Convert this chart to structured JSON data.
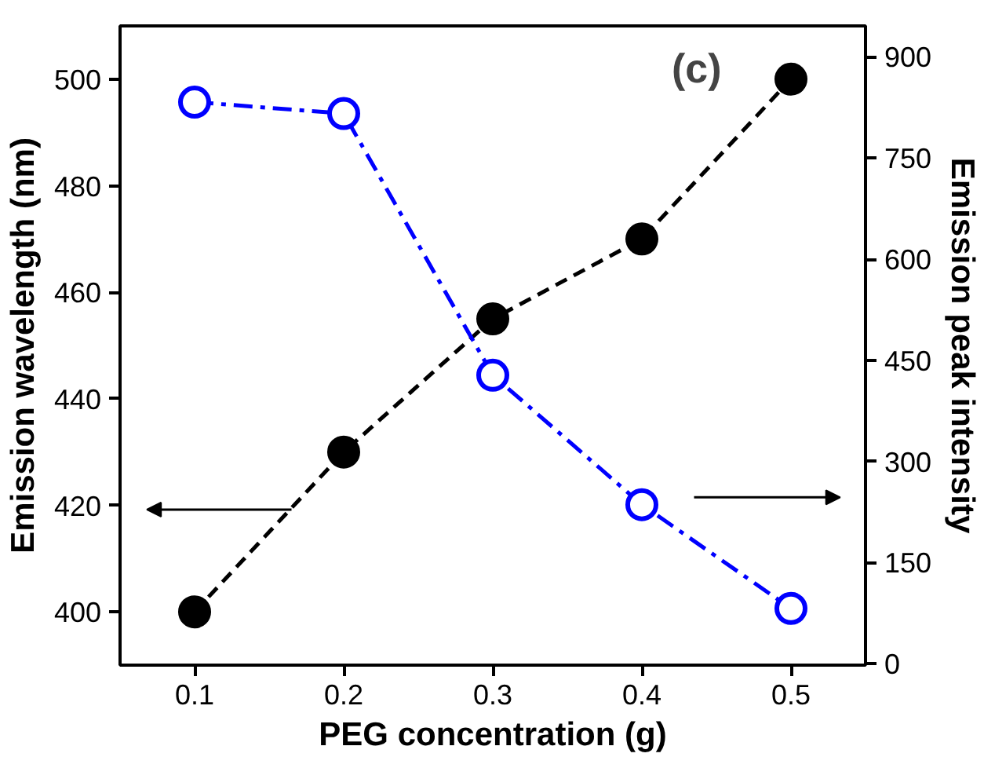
{
  "chart_data": {
    "type": "line",
    "xlabel": "PEG concentration (g)",
    "ylabel": "Emission wavelength (nm)",
    "y2label": "Emission peak intensity",
    "x": [
      0.1,
      0.2,
      0.3,
      0.4,
      0.5
    ],
    "series": [
      {
        "color": "#000000",
        "values": [
          400,
          430,
          455,
          470,
          500
        ],
        "marker": "circle",
        "line_style": "dashed"
      },
      {
        "color": "#0000ff",
        "values": [
          833,
          816,
          428,
          236,
          82
        ],
        "axis": "y2",
        "marker": "circle",
        "line_style": "dashdot"
      }
    ],
    "xlim": [
      0.05,
      0.55
    ],
    "xticks": [
      0.1,
      0.2,
      0.3,
      0.4,
      0.5
    ],
    "ylim": [
      390,
      510
    ],
    "yticks": [
      400,
      420,
      440,
      460,
      480,
      500
    ],
    "y2lim": [
      -2,
      946
    ],
    "y2ticks": [
      0,
      150,
      300,
      450,
      600,
      750,
      900
    ],
    "annotations": [
      "(c)"
    ],
    "grid": false
  }
}
